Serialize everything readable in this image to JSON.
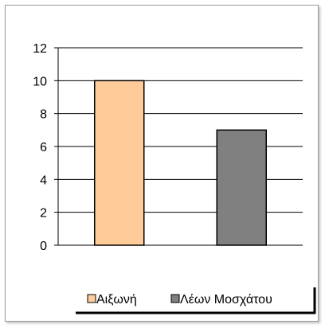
{
  "chart_data": {
    "type": "bar",
    "categories": [
      "Αιξωνή",
      "Λέων Μοσχάτου"
    ],
    "values": [
      10,
      7
    ],
    "title": "",
    "xlabel": "",
    "ylabel": "",
    "ylim": [
      0,
      12
    ],
    "yticks": [
      "0",
      "2",
      "4",
      "6",
      "8",
      "10",
      "12"
    ],
    "grid": true,
    "legend": "bottom",
    "colors": [
      "#ffcc99",
      "#808080"
    ]
  }
}
